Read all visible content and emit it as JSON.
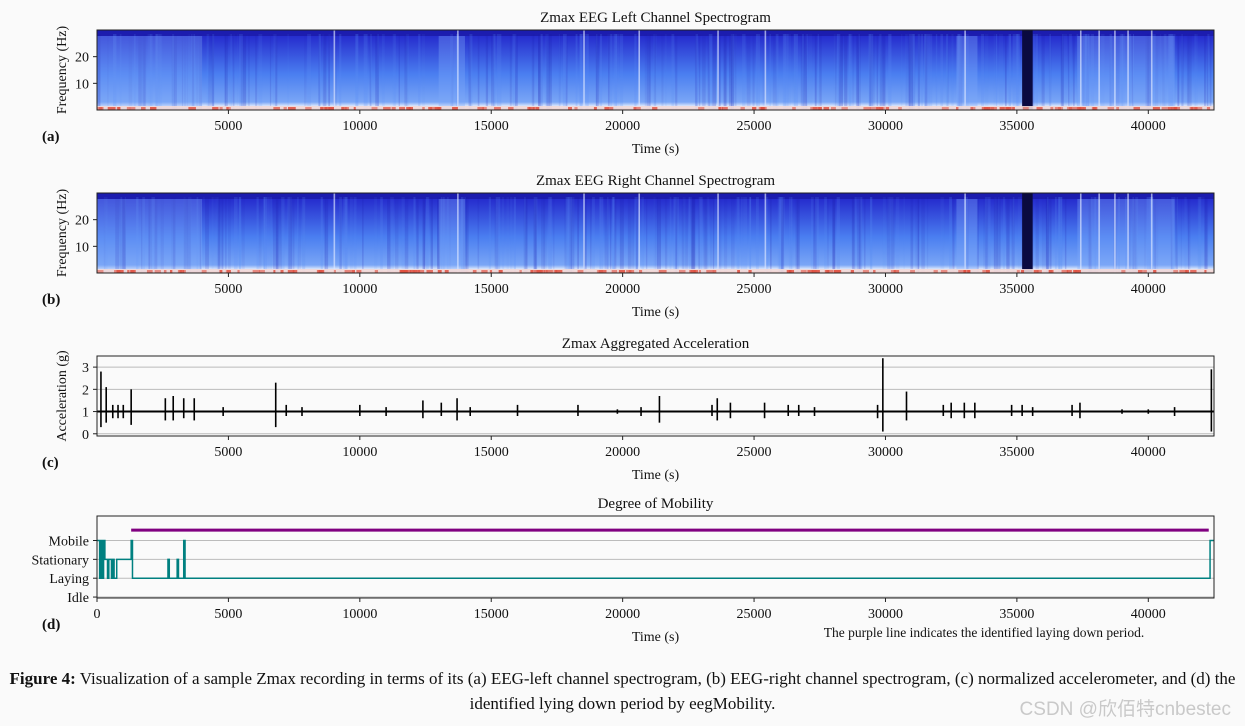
{
  "chart_data": [
    {
      "type": "heatmap",
      "panel_label": "(a)",
      "title": "Zmax EEG Left Channel Spectrogram",
      "xlabel": "Time (s)",
      "ylabel": "Frequency (Hz)",
      "xlim": [
        0,
        42500
      ],
      "ylim": [
        0,
        30
      ],
      "xticks": [
        5000,
        10000,
        15000,
        20000,
        25000,
        30000,
        35000,
        40000
      ],
      "yticks": [
        10,
        20
      ],
      "colormap": [
        "#2020c8",
        "#4a7ef0",
        "#ffffff",
        "#e05040"
      ],
      "bright_lines_s": [
        9000,
        13700,
        18500,
        20600,
        23600,
        25400,
        33000,
        37400,
        38100,
        38700,
        39200,
        40100
      ],
      "dark_band_s": [
        35200,
        35600
      ],
      "high_activity_s": [
        [
          0,
          4000
        ],
        [
          13000,
          14000
        ],
        [
          32700,
          33500
        ],
        [
          37300,
          41000
        ]
      ]
    },
    {
      "type": "heatmap",
      "panel_label": "(b)",
      "title": "Zmax EEG Right Channel Spectrogram",
      "xlabel": "Time (s)",
      "ylabel": "Frequency (Hz)",
      "xlim": [
        0,
        42500
      ],
      "ylim": [
        0,
        30
      ],
      "xticks": [
        5000,
        10000,
        15000,
        20000,
        25000,
        30000,
        35000,
        40000
      ],
      "yticks": [
        10,
        20
      ],
      "colormap": [
        "#2020c8",
        "#4a7ef0",
        "#ffffff",
        "#e05040"
      ],
      "bright_lines_s": [
        9000,
        13700,
        18500,
        20600,
        23600,
        25400,
        33000,
        37400,
        38100,
        38700,
        39200,
        40100
      ],
      "dark_band_s": [
        35200,
        35600
      ],
      "high_activity_s": [
        [
          0,
          4000
        ],
        [
          13000,
          14000
        ],
        [
          32700,
          33500
        ],
        [
          37300,
          41000
        ]
      ]
    },
    {
      "type": "line",
      "panel_label": "(c)",
      "title": "Zmax Aggregated Acceleration",
      "xlabel": "Time (s)",
      "ylabel": "Acceleration (g)",
      "xlim": [
        0,
        42500
      ],
      "ylim": [
        -0.1,
        3.5
      ],
      "xticks": [
        5000,
        10000,
        15000,
        20000,
        25000,
        30000,
        35000,
        40000
      ],
      "yticks": [
        0,
        1,
        2,
        3
      ],
      "grid": true,
      "baseline": 1.0,
      "spikes": [
        {
          "t": 150,
          "lo": 0.3,
          "hi": 2.8
        },
        {
          "t": 350,
          "lo": 0.5,
          "hi": 2.1
        },
        {
          "t": 600,
          "lo": 0.7,
          "hi": 1.3
        },
        {
          "t": 800,
          "lo": 0.7,
          "hi": 1.3
        },
        {
          "t": 1000,
          "lo": 0.7,
          "hi": 1.3
        },
        {
          "t": 1300,
          "lo": 0.4,
          "hi": 2.0
        },
        {
          "t": 2600,
          "lo": 0.6,
          "hi": 1.6
        },
        {
          "t": 2900,
          "lo": 0.6,
          "hi": 1.7
        },
        {
          "t": 3300,
          "lo": 0.7,
          "hi": 1.6
        },
        {
          "t": 3700,
          "lo": 0.6,
          "hi": 1.6
        },
        {
          "t": 4800,
          "lo": 0.8,
          "hi": 1.2
        },
        {
          "t": 6800,
          "lo": 0.3,
          "hi": 2.3
        },
        {
          "t": 7200,
          "lo": 0.8,
          "hi": 1.3
        },
        {
          "t": 7800,
          "lo": 0.8,
          "hi": 1.2
        },
        {
          "t": 10000,
          "lo": 0.8,
          "hi": 1.3
        },
        {
          "t": 11000,
          "lo": 0.8,
          "hi": 1.2
        },
        {
          "t": 12400,
          "lo": 0.7,
          "hi": 1.5
        },
        {
          "t": 13100,
          "lo": 0.8,
          "hi": 1.4
        },
        {
          "t": 13700,
          "lo": 0.6,
          "hi": 1.6
        },
        {
          "t": 14200,
          "lo": 0.8,
          "hi": 1.2
        },
        {
          "t": 16000,
          "lo": 0.8,
          "hi": 1.3
        },
        {
          "t": 18300,
          "lo": 0.8,
          "hi": 1.3
        },
        {
          "t": 19800,
          "lo": 0.9,
          "hi": 1.1
        },
        {
          "t": 20700,
          "lo": 0.8,
          "hi": 1.2
        },
        {
          "t": 21400,
          "lo": 0.5,
          "hi": 1.7
        },
        {
          "t": 23400,
          "lo": 0.8,
          "hi": 1.3
        },
        {
          "t": 23600,
          "lo": 0.6,
          "hi": 1.6
        },
        {
          "t": 24100,
          "lo": 0.7,
          "hi": 1.4
        },
        {
          "t": 25400,
          "lo": 0.7,
          "hi": 1.4
        },
        {
          "t": 26300,
          "lo": 0.8,
          "hi": 1.3
        },
        {
          "t": 26700,
          "lo": 0.8,
          "hi": 1.3
        },
        {
          "t": 27300,
          "lo": 0.8,
          "hi": 1.2
        },
        {
          "t": 29700,
          "lo": 0.7,
          "hi": 1.3
        },
        {
          "t": 29900,
          "lo": 0.1,
          "hi": 3.4
        },
        {
          "t": 30800,
          "lo": 0.6,
          "hi": 1.9
        },
        {
          "t": 32200,
          "lo": 0.8,
          "hi": 1.3
        },
        {
          "t": 32500,
          "lo": 0.7,
          "hi": 1.4
        },
        {
          "t": 33000,
          "lo": 0.7,
          "hi": 1.4
        },
        {
          "t": 33400,
          "lo": 0.7,
          "hi": 1.4
        },
        {
          "t": 34800,
          "lo": 0.8,
          "hi": 1.3
        },
        {
          "t": 35200,
          "lo": 0.8,
          "hi": 1.3
        },
        {
          "t": 35600,
          "lo": 0.8,
          "hi": 1.2
        },
        {
          "t": 37100,
          "lo": 0.8,
          "hi": 1.3
        },
        {
          "t": 37400,
          "lo": 0.7,
          "hi": 1.4
        },
        {
          "t": 39000,
          "lo": 0.9,
          "hi": 1.1
        },
        {
          "t": 40000,
          "lo": 0.9,
          "hi": 1.1
        },
        {
          "t": 41000,
          "lo": 0.8,
          "hi": 1.2
        },
        {
          "t": 42400,
          "lo": 0.1,
          "hi": 2.9
        }
      ]
    },
    {
      "type": "line",
      "panel_label": "(d)",
      "title": "Degree of Mobility",
      "xlabel": "Time (s)",
      "xlim": [
        0,
        42500
      ],
      "ylim": [
        -0.05,
        4.3
      ],
      "xticks": [
        0,
        5000,
        10000,
        15000,
        20000,
        25000,
        30000,
        35000,
        40000
      ],
      "yticks": [
        "Idle",
        "Laying",
        "Stationary",
        "Mobile"
      ],
      "grid": true,
      "annotation": "The purple line indicates the identified laying down period.",
      "laying_period": {
        "start": 1300,
        "end": 42300,
        "level": 3.55,
        "color": "#800080"
      },
      "mobility_color": "#008080",
      "mobility_steps": [
        [
          0,
          3
        ],
        [
          100,
          1
        ],
        [
          150,
          3
        ],
        [
          200,
          1
        ],
        [
          250,
          3
        ],
        [
          300,
          2
        ],
        [
          400,
          1
        ],
        [
          450,
          2
        ],
        [
          550,
          1
        ],
        [
          600,
          2
        ],
        [
          650,
          1
        ],
        [
          750,
          2
        ],
        [
          850,
          2
        ],
        [
          1300,
          3
        ],
        [
          1350,
          1
        ],
        [
          2700,
          2
        ],
        [
          2750,
          1
        ],
        [
          3050,
          2
        ],
        [
          3100,
          1
        ],
        [
          3300,
          3
        ],
        [
          3350,
          1
        ],
        [
          42350,
          3
        ],
        [
          42500,
          3
        ]
      ]
    }
  ],
  "caption": {
    "label": "Figure 4:",
    "text": "Visualization of a sample Zmax recording in terms of its (a) EEG-left channel spectrogram, (b) EEG-right channel spectrogram, (c) normalized accelerometer, and (d) the identified lying down period by eegMobility."
  },
  "watermark": "CSDN @欣佰特cnbestec"
}
